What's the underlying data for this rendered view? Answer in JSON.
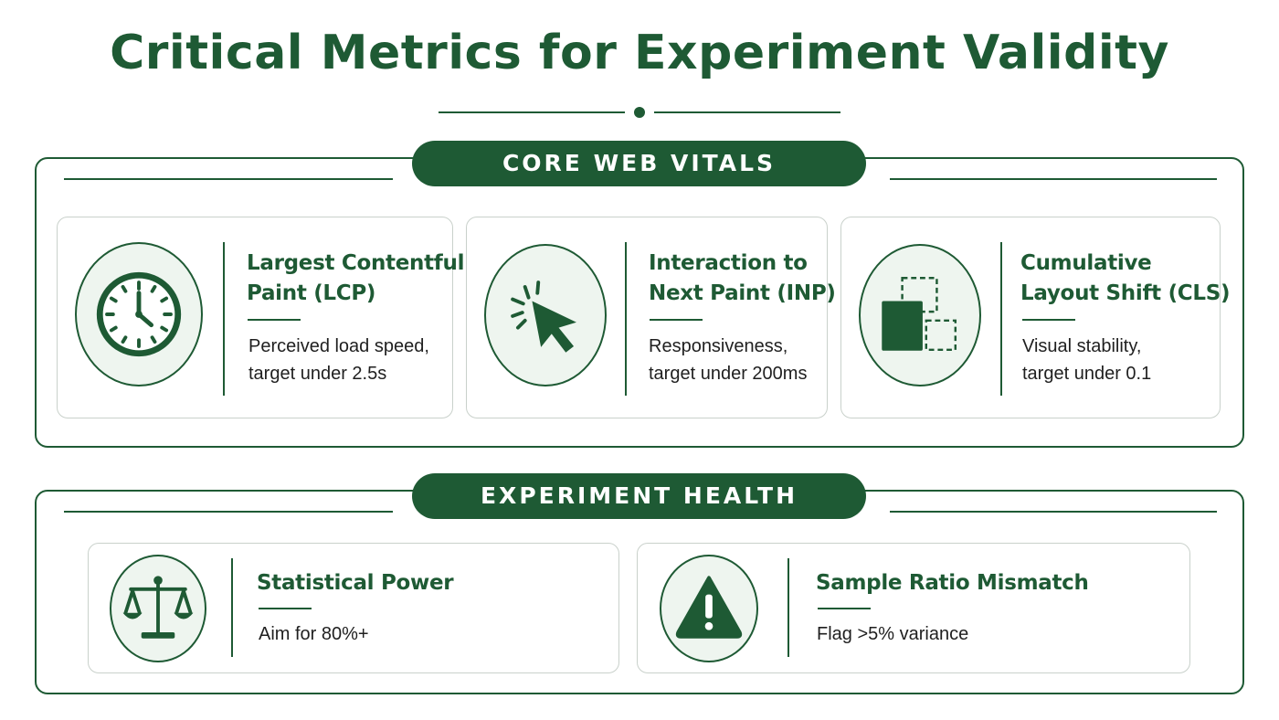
{
  "title": "Critical Metrics for Experiment Validity",
  "sections": [
    {
      "label": "CORE WEB VITALS",
      "cards": [
        {
          "title_line1": "Largest Contentful",
          "title_line2": "Paint (LCP)",
          "desc_line1": "Perceived load speed,",
          "desc_line2": "target under 2.5s",
          "icon": "clock-icon"
        },
        {
          "title_line1": "Interaction to",
          "title_line2": "Next Paint (INP)",
          "desc_line1": "Responsiveness,",
          "desc_line2": "target under 200ms",
          "icon": "cursor-click-icon"
        },
        {
          "title_line1": "Cumulative",
          "title_line2": "Layout Shift (CLS)",
          "desc_line1": "Visual stability,",
          "desc_line2": "target under 0.1",
          "icon": "layout-shift-icon"
        }
      ]
    },
    {
      "label": "EXPERIMENT HEALTH",
      "cards": [
        {
          "title": "Statistical Power",
          "desc": "Aim for 80%+",
          "icon": "scales-icon"
        },
        {
          "title": "Sample Ratio Mismatch",
          "desc": "Flag >5% variance",
          "icon": "warning-icon"
        }
      ]
    }
  ],
  "colors": {
    "primary": "#1e5a34",
    "icon_bg": "#eef5ef",
    "card_border": "#c9d1cb"
  }
}
